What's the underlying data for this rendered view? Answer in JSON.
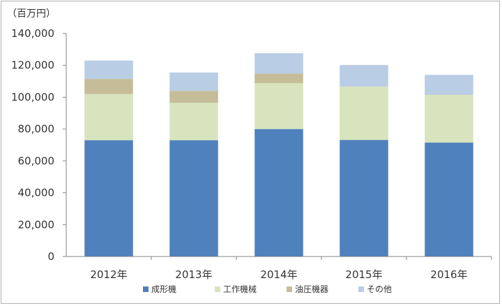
{
  "chart_data": {
    "type": "bar",
    "stacked": true,
    "unit_label": "（百万円）",
    "categories": [
      "2012年",
      "2013年",
      "2014年",
      "2015年",
      "2016年"
    ],
    "series": [
      {
        "name": "成形機",
        "color": "#4f81bd",
        "values": [
          73000,
          73000,
          80000,
          73200,
          71500
        ]
      },
      {
        "name": "工作機械",
        "color": "#d7e4bd",
        "values": [
          29000,
          23500,
          28800,
          33500,
          30000
        ]
      },
      {
        "name": "油圧機器",
        "color": "#c4bd97",
        "values": [
          9500,
          7500,
          6000,
          0,
          0
        ]
      },
      {
        "name": "その他",
        "color": "#b9cde5",
        "values": [
          11500,
          11500,
          12800,
          13500,
          12500
        ]
      }
    ],
    "ylim": [
      0,
      140000
    ],
    "yticks": [
      "0",
      "20,000",
      "40,000",
      "60,000",
      "80,000",
      "100,000",
      "120,000",
      "140,000"
    ],
    "grid": false,
    "legend_position": "bottom"
  }
}
